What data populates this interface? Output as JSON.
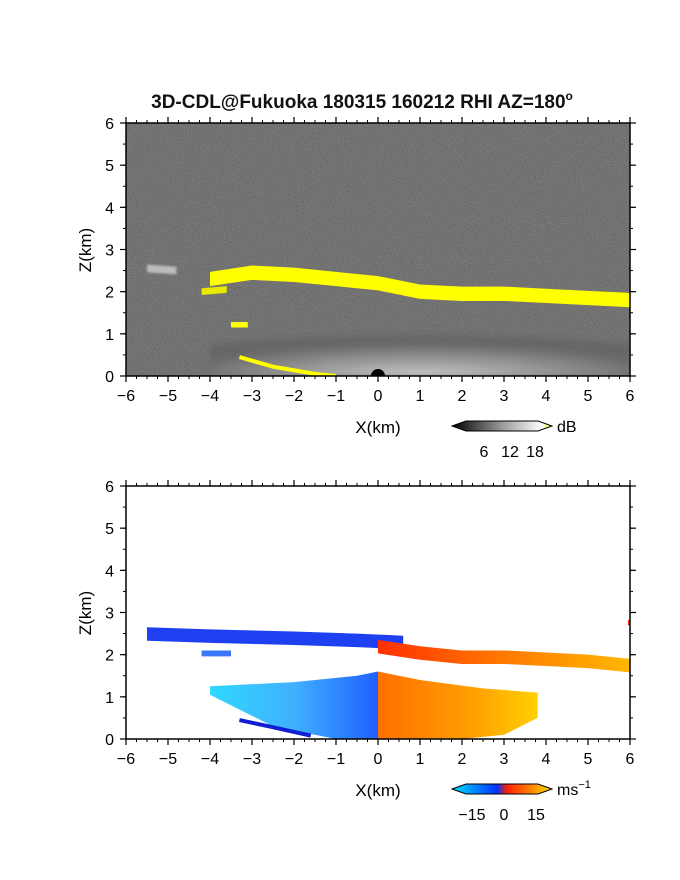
{
  "title": "3D-CDL@Fukuoka 180315 160212 RHI AZ=180",
  "title_superscript": "o",
  "chart_data": [
    {
      "type": "heatmap",
      "name": "backscatter-intensity",
      "xlabel": "X(km)",
      "ylabel": "Z(km)",
      "xlim": [
        -6,
        6
      ],
      "ylim": [
        0,
        6
      ],
      "xticks": [
        -6,
        -5,
        -4,
        -3,
        -2,
        -1,
        0,
        1,
        2,
        3,
        4,
        5,
        6
      ],
      "yticks": [
        0,
        1,
        2,
        3,
        4,
        5,
        6
      ],
      "background": "#181818",
      "colorbar": {
        "unit": "dB",
        "ticks": [
          "6",
          "12",
          "18"
        ],
        "colors": [
          "#000000",
          "#ffffff",
          "#ffff00"
        ]
      },
      "features": {
        "cloud_base_band_2km": [
          [
            -4.0,
            2.3
          ],
          [
            -3.0,
            2.45
          ],
          [
            -2.0,
            2.4
          ],
          [
            -1.0,
            2.3
          ],
          [
            0.0,
            2.2
          ],
          [
            1.0,
            2.0
          ],
          [
            2.0,
            1.95
          ],
          [
            3.0,
            1.95
          ],
          [
            4.0,
            1.9
          ],
          [
            5.0,
            1.85
          ],
          [
            6.0,
            1.8
          ]
        ],
        "surface_echo": [
          [
            -3.3,
            0.45
          ],
          [
            -2.5,
            0.22
          ],
          [
            -1.5,
            0.05
          ],
          [
            -1.0,
            0.0
          ]
        ],
        "boundary_layer": [
          [
            -4.0,
            0.8
          ],
          [
            -2.0,
            1.3
          ],
          [
            0.0,
            1.2
          ],
          [
            2.0,
            1.3
          ],
          [
            4.0,
            1.0
          ],
          [
            6.0,
            0.9
          ]
        ]
      }
    },
    {
      "type": "heatmap",
      "name": "doppler-velocity",
      "xlabel": "X(km)",
      "ylabel": "Z(km)",
      "xlim": [
        -6,
        6
      ],
      "ylim": [
        0,
        6
      ],
      "xticks": [
        -6,
        -5,
        -4,
        -3,
        -2,
        -1,
        0,
        1,
        2,
        3,
        4,
        5,
        6
      ],
      "yticks": [
        0,
        1,
        2,
        3,
        4,
        5,
        6
      ],
      "background": "#ffffff",
      "colorbar": {
        "unit": "ms",
        "unit_superscript": "-1",
        "ticks": [
          "-15",
          "0",
          "15"
        ],
        "colors": [
          "#00e0ff",
          "#0030ff",
          "#ff2000",
          "#ff8000",
          "#ffe000"
        ]
      },
      "features": {
        "upper_band_negative": [
          [
            -5.5,
            2.5
          ],
          [
            -4.0,
            2.45
          ],
          [
            -2.0,
            2.4
          ],
          [
            -0.5,
            2.35
          ],
          [
            0.6,
            2.3
          ]
        ],
        "upper_band_positive": [
          [
            0.0,
            2.2
          ],
          [
            1.0,
            2.05
          ],
          [
            2.0,
            1.95
          ],
          [
            3.0,
            1.95
          ],
          [
            4.0,
            1.9
          ],
          [
            5.0,
            1.85
          ],
          [
            6.0,
            1.75
          ]
        ],
        "low_level_negative_extent": [
          -4.0,
          0.0
        ],
        "low_level_positive_extent": [
          0.0,
          3.8
        ]
      }
    }
  ]
}
